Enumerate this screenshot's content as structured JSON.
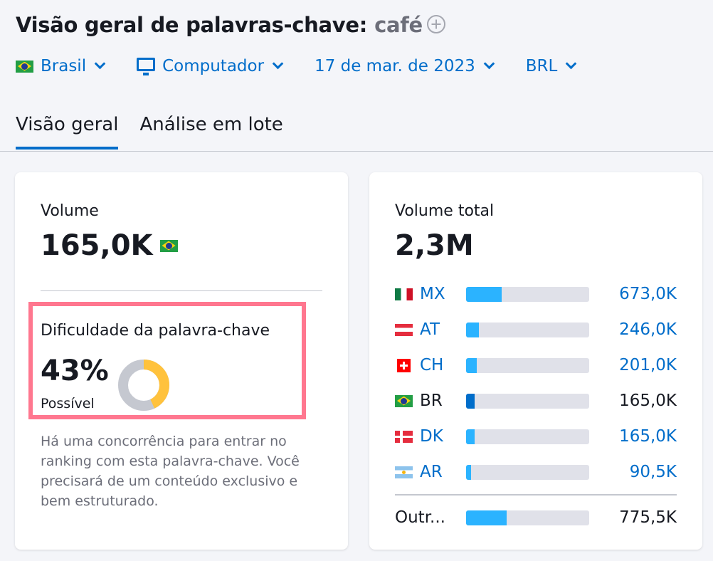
{
  "header": {
    "title": "Visão geral de palavras-chave:",
    "keyword": "café"
  },
  "filters": [
    {
      "label": "Brasil",
      "icon": "flag-br"
    },
    {
      "label": "Computador",
      "icon": "monitor-icon"
    },
    {
      "label": "17 de mar. de 2023"
    },
    {
      "label": "BRL"
    }
  ],
  "tabs": [
    {
      "label": "Visão geral",
      "active": true
    },
    {
      "label": "Análise em lote",
      "active": false
    }
  ],
  "volume": {
    "label": "Volume",
    "value": "165,0K"
  },
  "difficulty": {
    "label": "Dificuldade da palavra-chave",
    "value": "43%",
    "percent": 43,
    "level": "Possível",
    "description": "Há uma concorrência para entrar no ranking com esta palavra-chave. Você precisará de um conteúdo exclusivo e bem estruturado.",
    "colors": {
      "fill": "#ffc23d",
      "track": "#c5c8d0"
    }
  },
  "total": {
    "label": "Volume total",
    "value": "2,3M",
    "countries": [
      {
        "code": "MX",
        "value": "673,0K",
        "share": 29,
        "flag": "mx",
        "link": true
      },
      {
        "code": "AT",
        "value": "246,0K",
        "share": 10.5,
        "flag": "at",
        "link": true
      },
      {
        "code": "CH",
        "value": "201,0K",
        "share": 8.6,
        "flag": "ch",
        "link": true
      },
      {
        "code": "BR",
        "value": "165,0K",
        "share": 7,
        "flag": "br",
        "link": false
      },
      {
        "code": "DK",
        "value": "165,0K",
        "share": 7,
        "flag": "dk",
        "link": true
      },
      {
        "code": "AR",
        "value": "90,5K",
        "share": 3.9,
        "flag": "ar",
        "link": true
      }
    ],
    "other": {
      "code": "Outr...",
      "value": "775,5K",
      "share": 33
    }
  },
  "colors": {
    "accent": "#006dca",
    "bar": "#2bb3ff",
    "bar_current": "#006dca",
    "highlight": "#ff778f"
  }
}
